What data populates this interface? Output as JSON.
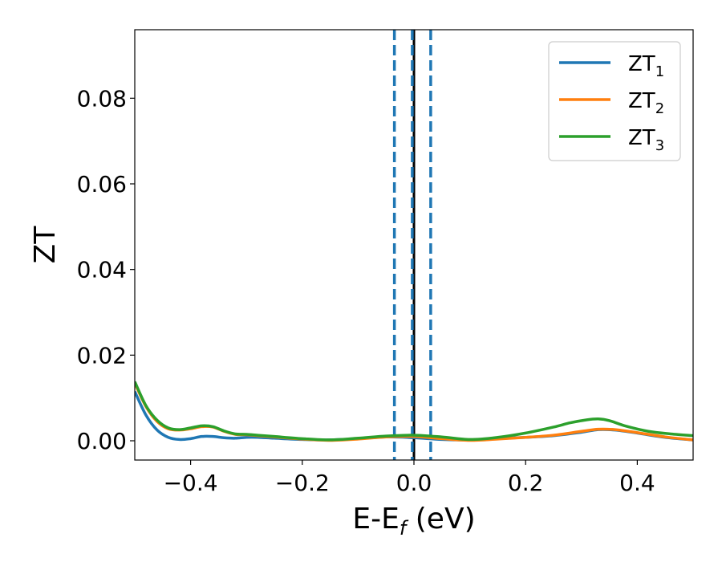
{
  "chart_data": {
    "type": "line",
    "xlabel": "E-E",
    "xlabel_sub": "f",
    "xlabel_unit": " (eV)",
    "ylabel": "ZT",
    "xlim": [
      -0.5,
      0.5
    ],
    "ylim": [
      -0.0045,
      0.096
    ],
    "xticks": [
      -0.4,
      -0.2,
      0.0,
      0.2,
      0.4
    ],
    "xtick_labels": [
      "−0.4",
      "−0.2",
      "0.0",
      "0.2",
      "0.4"
    ],
    "yticks": [
      0.0,
      0.02,
      0.04,
      0.06,
      0.08
    ],
    "ytick_labels": [
      "0.00",
      "0.02",
      "0.04",
      "0.06",
      "0.08"
    ],
    "grid": false,
    "legend_position": "top-right",
    "vertical_lines": [
      {
        "x": 0.0,
        "style": "solid",
        "color": "#000000"
      },
      {
        "x": -0.035,
        "style": "dashed",
        "color": "#1f77b4"
      },
      {
        "x": -0.003,
        "style": "dashed",
        "color": "#1f77b4"
      },
      {
        "x": 0.03,
        "style": "dashed",
        "color": "#1f77b4"
      }
    ],
    "series": [
      {
        "name": "ZT",
        "sub": "1",
        "color": "#1f77b4",
        "x": [
          -0.5,
          -0.48,
          -0.46,
          -0.44,
          -0.42,
          -0.4,
          -0.38,
          -0.36,
          -0.34,
          -0.32,
          -0.3,
          -0.28,
          -0.25,
          -0.2,
          -0.15,
          -0.1,
          -0.05,
          0.0,
          0.05,
          0.1,
          0.15,
          0.2,
          0.25,
          0.3,
          0.33,
          0.36,
          0.4,
          0.45,
          0.5
        ],
        "y": [
          0.0115,
          0.006,
          0.0025,
          0.0008,
          0.0003,
          0.0005,
          0.001,
          0.001,
          0.0007,
          0.0006,
          0.0008,
          0.0008,
          0.0006,
          0.0003,
          0.0002,
          0.0005,
          0.0009,
          0.0007,
          0.0003,
          0.0002,
          0.0005,
          0.0008,
          0.0012,
          0.002,
          0.0026,
          0.0025,
          0.0018,
          0.0008,
          0.0002
        ]
      },
      {
        "name": "ZT",
        "sub": "2",
        "color": "#ff7f0e",
        "x": [
          -0.5,
          -0.48,
          -0.46,
          -0.44,
          -0.42,
          -0.4,
          -0.38,
          -0.36,
          -0.34,
          -0.32,
          -0.3,
          -0.28,
          -0.25,
          -0.2,
          -0.15,
          -0.1,
          -0.05,
          0.0,
          0.05,
          0.1,
          0.15,
          0.2,
          0.25,
          0.3,
          0.33,
          0.36,
          0.4,
          0.45,
          0.5
        ],
        "y": [
          0.0135,
          0.008,
          0.0045,
          0.0028,
          0.0025,
          0.0028,
          0.0033,
          0.0032,
          0.0022,
          0.0015,
          0.0014,
          0.0012,
          0.0009,
          0.0004,
          0.0001,
          0.0004,
          0.0009,
          0.001,
          0.0005,
          0.0001,
          0.0004,
          0.0008,
          0.0013,
          0.0022,
          0.0027,
          0.0026,
          0.0019,
          0.0009,
          0.0002
        ]
      },
      {
        "name": "ZT",
        "sub": "3",
        "color": "#2ca02c",
        "x": [
          -0.5,
          -0.48,
          -0.46,
          -0.44,
          -0.42,
          -0.4,
          -0.38,
          -0.36,
          -0.34,
          -0.32,
          -0.3,
          -0.28,
          -0.25,
          -0.2,
          -0.15,
          -0.1,
          -0.05,
          0.0,
          0.05,
          0.1,
          0.15,
          0.2,
          0.25,
          0.28,
          0.31,
          0.33,
          0.35,
          0.38,
          0.42,
          0.46,
          0.5
        ],
        "y": [
          0.0138,
          0.0082,
          0.0048,
          0.003,
          0.0026,
          0.003,
          0.0035,
          0.0033,
          0.0023,
          0.0016,
          0.0015,
          0.0013,
          0.001,
          0.0005,
          0.0002,
          0.0006,
          0.0011,
          0.0013,
          0.0009,
          0.0003,
          0.0008,
          0.0018,
          0.0032,
          0.0042,
          0.0049,
          0.0051,
          0.0047,
          0.0034,
          0.0022,
          0.0016,
          0.0012
        ]
      }
    ]
  }
}
